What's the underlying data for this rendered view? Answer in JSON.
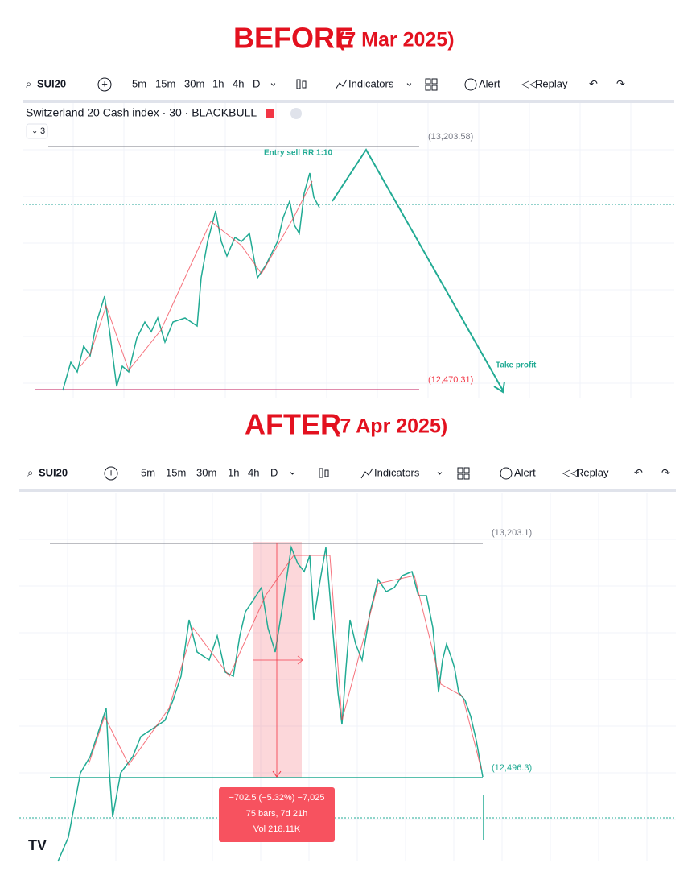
{
  "before": {
    "heading": "BEFORE",
    "date": "(7 Mar 2025)",
    "toolbar": {
      "symbol": "SUI20",
      "intervals": [
        "5m",
        "15m",
        "30m",
        "1h",
        "4h",
        "D"
      ],
      "active_interval": "30m",
      "indicators": "Indicators",
      "alert": "Alert",
      "replay": "Replay"
    },
    "legend": {
      "title": "Switzerland 20 Cash index · 30 · BLACKBULL",
      "count": "3"
    },
    "price_top": "(13,203.58)",
    "price_bottom": "(12,470.31)",
    "annotation_entry": "Entry sell RR 1:10",
    "annotation_tp": "Take profit"
  },
  "after": {
    "heading": "AFTER",
    "date": "(7 Apr 2025)",
    "toolbar": {
      "symbol": "SUI20",
      "intervals": [
        "5m",
        "15m",
        "30m",
        "1h",
        "4h",
        "D"
      ],
      "active_interval": "1h",
      "indicators": "Indicators",
      "alert": "Alert",
      "replay": "Replay"
    },
    "price_top": "(13,203.1)",
    "price_bottom": "(12,496.3)",
    "measure": [
      "−702.5 (−5.32%) −7,025",
      "75 bars, 7d 21h",
      "Vol 218.11K"
    ]
  }
}
